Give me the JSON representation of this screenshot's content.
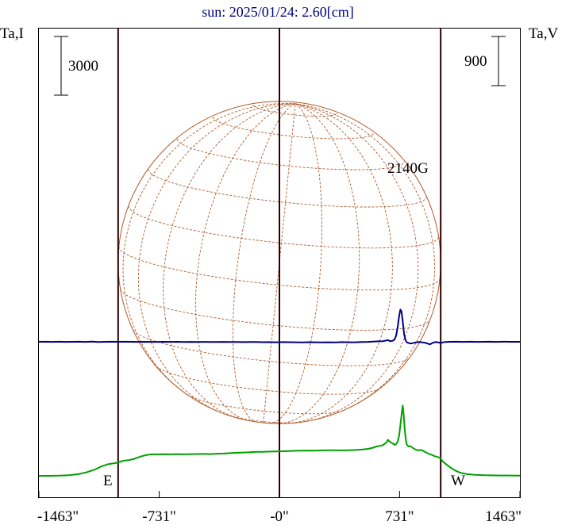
{
  "chart_data": {
    "type": "line",
    "title": "sun: 2025/01/24: 2.60[cm]",
    "left_axis_label": "Ta,I",
    "right_axis_label": "Ta,V",
    "left_scale_bar": "3000",
    "right_scale_bar": "900",
    "annotation": "2140G",
    "east_label": "E",
    "west_label": "W",
    "xlim": [
      -1463,
      1463
    ],
    "x_ticks": [
      -1463,
      -731,
      0,
      731,
      1463
    ],
    "x_tick_labels": [
      "-1463\"",
      "-731\"",
      "-0\"",
      "731\"",
      "1463\""
    ],
    "vertical_markers": [
      -981,
      0,
      981
    ],
    "solar_radius": 981,
    "grid": false,
    "colors": {
      "title": "#000080",
      "stokes_I": "#00a000",
      "stokes_V": "#000080",
      "markers": "#300000",
      "sun_outline": "#b05a2a"
    },
    "series": [
      {
        "key": "stokes_I",
        "points": [
          [
            -1463,
            0
          ],
          [
            -1400,
            2
          ],
          [
            -1340,
            10
          ],
          [
            -1280,
            30
          ],
          [
            -1220,
            90
          ],
          [
            -1170,
            190
          ],
          [
            -1120,
            330
          ],
          [
            -1080,
            490
          ],
          [
            -1040,
            600
          ],
          [
            -1000,
            650
          ],
          [
            -981,
            690
          ],
          [
            -950,
            770
          ],
          [
            -920,
            800
          ],
          [
            -890,
            850
          ],
          [
            -860,
            940
          ],
          [
            -830,
            1020
          ],
          [
            -800,
            1080
          ],
          [
            -770,
            1100
          ],
          [
            -740,
            1100
          ],
          [
            -700,
            1105
          ],
          [
            -660,
            1100
          ],
          [
            -620,
            1110
          ],
          [
            -580,
            1100
          ],
          [
            -540,
            1110
          ],
          [
            -500,
            1115
          ],
          [
            -460,
            1120
          ],
          [
            -420,
            1110
          ],
          [
            -380,
            1130
          ],
          [
            -340,
            1140
          ],
          [
            -300,
            1160
          ],
          [
            -260,
            1180
          ],
          [
            -220,
            1190
          ],
          [
            -180,
            1210
          ],
          [
            -140,
            1230
          ],
          [
            -100,
            1230
          ],
          [
            -60,
            1240
          ],
          [
            -20,
            1250
          ],
          [
            20,
            1255
          ],
          [
            60,
            1270
          ],
          [
            100,
            1280
          ],
          [
            140,
            1290
          ],
          [
            180,
            1295
          ],
          [
            220,
            1290
          ],
          [
            260,
            1300
          ],
          [
            300,
            1310
          ],
          [
            340,
            1305
          ],
          [
            380,
            1300
          ],
          [
            420,
            1310
          ],
          [
            460,
            1320
          ],
          [
            500,
            1340
          ],
          [
            540,
            1380
          ],
          [
            570,
            1440
          ],
          [
            590,
            1500
          ],
          [
            610,
            1530
          ],
          [
            630,
            1570
          ],
          [
            650,
            1700
          ],
          [
            660,
            1840
          ],
          [
            672,
            1740
          ],
          [
            690,
            1650
          ],
          [
            700,
            1580
          ],
          [
            710,
            1620
          ],
          [
            720,
            1760
          ],
          [
            728,
            2050
          ],
          [
            736,
            2600
          ],
          [
            744,
            3200
          ],
          [
            750,
            3600
          ],
          [
            756,
            3100
          ],
          [
            762,
            2400
          ],
          [
            768,
            1900
          ],
          [
            774,
            1600
          ],
          [
            780,
            1550
          ],
          [
            786,
            1500
          ],
          [
            792,
            1520
          ],
          [
            800,
            1500
          ],
          [
            820,
            1380
          ],
          [
            840,
            1300
          ],
          [
            855,
            1320
          ],
          [
            870,
            1300
          ],
          [
            890,
            1200
          ],
          [
            910,
            1120
          ],
          [
            925,
            1080
          ],
          [
            945,
            1000
          ],
          [
            965,
            960
          ],
          [
            981,
            880
          ],
          [
            995,
            720
          ],
          [
            1010,
            620
          ],
          [
            1025,
            520
          ],
          [
            1045,
            400
          ],
          [
            1070,
            270
          ],
          [
            1100,
            160
          ],
          [
            1140,
            90
          ],
          [
            1190,
            50
          ],
          [
            1250,
            30
          ],
          [
            1320,
            20
          ],
          [
            1400,
            15
          ],
          [
            1463,
            10
          ]
        ]
      },
      {
        "key": "stokes_V",
        "points": [
          [
            -1463,
            0
          ],
          [
            -1420,
            2
          ],
          [
            -1380,
            -2
          ],
          [
            -1340,
            1
          ],
          [
            -1300,
            -1
          ],
          [
            -1260,
            0
          ],
          [
            -1220,
            1
          ],
          [
            -1180,
            -2
          ],
          [
            -1140,
            3
          ],
          [
            -1100,
            -3
          ],
          [
            -1060,
            0
          ],
          [
            -1020,
            1
          ],
          [
            -981,
            0
          ],
          [
            -940,
            2
          ],
          [
            -900,
            0
          ],
          [
            -860,
            -1
          ],
          [
            -820,
            0
          ],
          [
            -780,
            -2
          ],
          [
            -740,
            -1
          ],
          [
            -700,
            0
          ],
          [
            -660,
            -2
          ],
          [
            -620,
            0
          ],
          [
            -580,
            -3
          ],
          [
            -540,
            -1
          ],
          [
            -500,
            -4
          ],
          [
            -460,
            -2
          ],
          [
            -420,
            -3
          ],
          [
            -380,
            -4
          ],
          [
            -340,
            -2
          ],
          [
            -300,
            -5
          ],
          [
            -260,
            -3
          ],
          [
            -220,
            -6
          ],
          [
            -180,
            -4
          ],
          [
            -140,
            -5
          ],
          [
            -100,
            -7
          ],
          [
            -60,
            -6
          ],
          [
            -20,
            -8
          ],
          [
            20,
            -6
          ],
          [
            60,
            -7
          ],
          [
            100,
            -9
          ],
          [
            140,
            -10
          ],
          [
            180,
            -7
          ],
          [
            220,
            -9
          ],
          [
            260,
            -11
          ],
          [
            300,
            -8
          ],
          [
            340,
            -10
          ],
          [
            380,
            -6
          ],
          [
            420,
            -9
          ],
          [
            460,
            -8
          ],
          [
            500,
            -5
          ],
          [
            540,
            -2
          ],
          [
            570,
            4
          ],
          [
            600,
            8
          ],
          [
            630,
            12
          ],
          [
            660,
            30
          ],
          [
            675,
            10
          ],
          [
            690,
            20
          ],
          [
            700,
            40
          ],
          [
            710,
            110
          ],
          [
            720,
            280
          ],
          [
            728,
            470
          ],
          [
            736,
            590
          ],
          [
            742,
            560
          ],
          [
            750,
            380
          ],
          [
            758,
            150
          ],
          [
            766,
            40
          ],
          [
            775,
            -10
          ],
          [
            785,
            -20
          ],
          [
            795,
            -30
          ],
          [
            810,
            -25
          ],
          [
            830,
            -10
          ],
          [
            850,
            -5
          ],
          [
            870,
            -10
          ],
          [
            890,
            -20
          ],
          [
            905,
            -35
          ],
          [
            915,
            -48
          ],
          [
            925,
            -30
          ],
          [
            940,
            -10
          ],
          [
            955,
            -5
          ],
          [
            970,
            -15
          ],
          [
            981,
            -22
          ],
          [
            995,
            -10
          ],
          [
            1010,
            -3
          ],
          [
            1040,
            0
          ],
          [
            1080,
            2
          ],
          [
            1120,
            -1
          ],
          [
            1160,
            1
          ],
          [
            1200,
            -2
          ],
          [
            1240,
            0
          ],
          [
            1280,
            1
          ],
          [
            1320,
            -1
          ],
          [
            1360,
            2
          ],
          [
            1400,
            0
          ],
          [
            1463,
            0
          ]
        ]
      }
    ]
  }
}
